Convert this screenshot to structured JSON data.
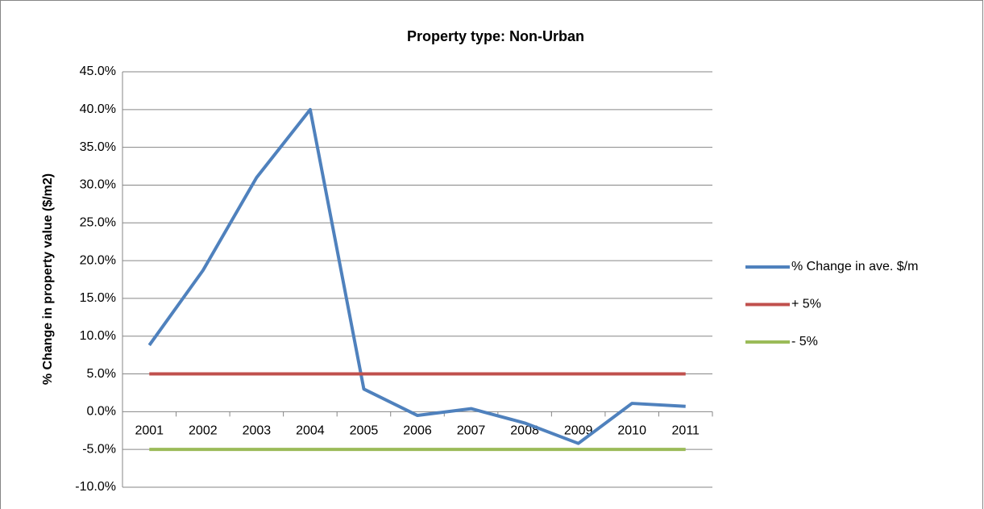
{
  "chart_data": {
    "type": "line",
    "title": "Property type: Non-Urban",
    "ylabel": "% Change in property value ($/m2)",
    "categories": [
      "2001",
      "2002",
      "2003",
      "2004",
      "2005",
      "2006",
      "2007",
      "2008",
      "2009",
      "2010",
      "2011"
    ],
    "series": [
      {
        "name": "% Change in ave. $/m",
        "color": "#4f81bd",
        "values": [
          8.8,
          18.7,
          31.0,
          40.0,
          3.0,
          -0.5,
          0.4,
          -1.5,
          -4.2,
          1.1,
          0.7
        ]
      },
      {
        "name": "+ 5%",
        "color": "#c0504d",
        "values": [
          5,
          5,
          5,
          5,
          5,
          5,
          5,
          5,
          5,
          5,
          5
        ]
      },
      {
        "name": "- 5%",
        "color": "#9bbb59",
        "values": [
          -5,
          -5,
          -5,
          -5,
          -5,
          -5,
          -5,
          -5,
          -5,
          -5,
          -5
        ]
      }
    ],
    "ylim": [
      -10,
      45
    ],
    "yticks": [
      {
        "value": -10,
        "label": "-10.0%"
      },
      {
        "value": -5,
        "label": "-5.0%"
      },
      {
        "value": 0,
        "label": "0.0%"
      },
      {
        "value": 5,
        "label": "5.0%"
      },
      {
        "value": 10,
        "label": "10.0%"
      },
      {
        "value": 15,
        "label": "15.0%"
      },
      {
        "value": 20,
        "label": "20.0%"
      },
      {
        "value": 25,
        "label": "25.0%"
      },
      {
        "value": 30,
        "label": "30.0%"
      },
      {
        "value": 35,
        "label": "35.0%"
      },
      {
        "value": 40,
        "label": "40.0%"
      },
      {
        "value": 45,
        "label": "45.0%"
      }
    ],
    "grid": true,
    "legend": "right"
  }
}
